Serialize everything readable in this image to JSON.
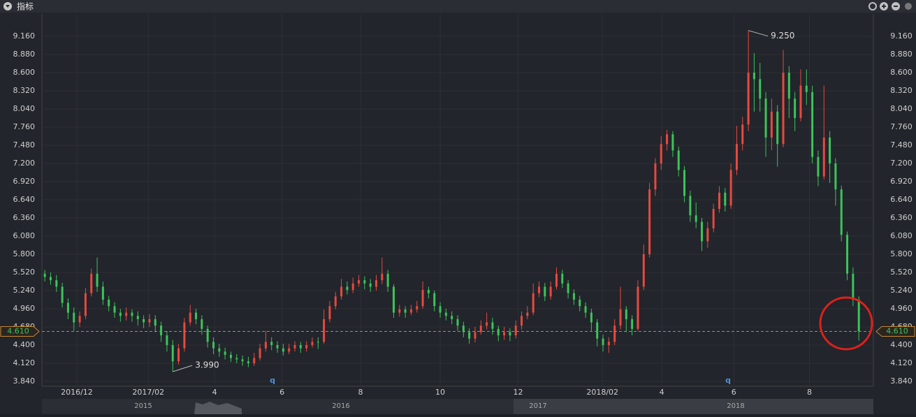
{
  "header": {
    "title": "指标"
  },
  "chart_data": {
    "type": "candlestick",
    "ylim": [
      3.765,
      9.505
    ],
    "yticks": [
      {
        "value": 3.84,
        "label": "3.840"
      },
      {
        "value": 4.12,
        "label": "4.120"
      },
      {
        "value": 4.4,
        "label": "4.400"
      },
      {
        "value": 4.68,
        "label": "4.680"
      },
      {
        "value": 4.96,
        "label": "4.960"
      },
      {
        "value": 5.24,
        "label": "5.240"
      },
      {
        "value": 5.52,
        "label": "5.520"
      },
      {
        "value": 5.8,
        "label": "5.800"
      },
      {
        "value": 6.08,
        "label": "6.080"
      },
      {
        "value": 6.36,
        "label": "6.360"
      },
      {
        "value": 6.64,
        "label": "6.640"
      },
      {
        "value": 6.92,
        "label": "6.920"
      },
      {
        "value": 7.2,
        "label": "7.200"
      },
      {
        "value": 7.48,
        "label": "7.480"
      },
      {
        "value": 7.76,
        "label": "7.760"
      },
      {
        "value": 8.04,
        "label": "8.040"
      },
      {
        "value": 8.32,
        "label": "8.320"
      },
      {
        "value": 8.6,
        "label": "8.600"
      },
      {
        "value": 8.88,
        "label": "8.880"
      },
      {
        "value": 9.16,
        "label": "9.160"
      }
    ],
    "xlim": [
      0,
      143
    ],
    "xticks": [
      {
        "value": 6.0,
        "label": "2016/12"
      },
      {
        "value": 18.3,
        "label": "2017/02"
      },
      {
        "value": 29.7,
        "label": "4"
      },
      {
        "value": 41.3,
        "label": "6"
      },
      {
        "value": 54.8,
        "label": "8"
      },
      {
        "value": 68.5,
        "label": "10"
      },
      {
        "value": 81.9,
        "label": "12"
      },
      {
        "value": 96.4,
        "label": "2018/02"
      },
      {
        "value": 106.6,
        "label": "4"
      },
      {
        "value": 119.0,
        "label": "6"
      },
      {
        "value": 132.0,
        "label": "8"
      }
    ],
    "grid": true,
    "up_color": "#e8493f",
    "down_color": "#3cc45a",
    "open": [
      5.5,
      5.45,
      5.4,
      5.3,
      5.05,
      4.9,
      4.75,
      4.85,
      5.2,
      5.5,
      5.3,
      5.1,
      5.0,
      4.9,
      4.85,
      4.9,
      4.85,
      4.8,
      4.75,
      4.8,
      4.7,
      4.55,
      4.4,
      4.15,
      4.35,
      4.75,
      4.9,
      4.8,
      4.65,
      4.45,
      4.35,
      4.3,
      4.25,
      4.2,
      4.18,
      4.15,
      4.12,
      4.2,
      4.35,
      4.45,
      4.4,
      4.35,
      4.3,
      4.35,
      4.4,
      4.35,
      4.4,
      4.45,
      4.45,
      4.8,
      5.0,
      5.15,
      5.3,
      5.25,
      5.35,
      5.4,
      5.35,
      5.3,
      5.4,
      5.5,
      5.3,
      4.9,
      4.95,
      4.9,
      4.95,
      5.0,
      5.25,
      5.2,
      5.0,
      4.9,
      4.85,
      4.8,
      4.7,
      4.6,
      4.5,
      4.6,
      4.7,
      4.75,
      4.65,
      4.55,
      4.6,
      4.55,
      4.7,
      4.85,
      4.9,
      5.2,
      5.3,
      5.15,
      5.3,
      5.5,
      5.35,
      5.2,
      5.1,
      5.0,
      4.9,
      4.75,
      4.5,
      4.4,
      4.45,
      4.7,
      4.95,
      4.8,
      4.65,
      5.3,
      5.8,
      6.8,
      7.2,
      7.5,
      7.65,
      7.4,
      7.1,
      6.7,
      6.4,
      6.3,
      6.0,
      6.2,
      6.5,
      6.75,
      6.55,
      7.1,
      7.5,
      7.8,
      8.6,
      8.5,
      8.2,
      7.6,
      8.0,
      7.5,
      8.6,
      8.2,
      7.9,
      8.4,
      8.3,
      7.3,
      7.0,
      7.6,
      7.2,
      6.8,
      6.1,
      5.5,
      5.1
    ],
    "high": [
      5.56,
      5.52,
      5.48,
      5.36,
      5.12,
      4.98,
      4.92,
      5.28,
      5.58,
      5.75,
      5.38,
      5.16,
      5.06,
      4.96,
      4.98,
      4.95,
      4.92,
      4.86,
      4.88,
      4.86,
      4.76,
      4.62,
      4.48,
      4.42,
      4.82,
      5.02,
      4.96,
      4.86,
      4.7,
      4.52,
      4.42,
      4.36,
      4.3,
      4.26,
      4.24,
      4.22,
      4.28,
      4.42,
      4.62,
      4.52,
      4.46,
      4.42,
      4.42,
      4.46,
      4.45,
      4.46,
      4.52,
      4.52,
      4.95,
      5.08,
      5.22,
      5.42,
      5.38,
      5.44,
      5.48,
      5.46,
      5.42,
      5.48,
      5.75,
      5.56,
      5.34,
      5.02,
      5.0,
      5.02,
      5.08,
      5.38,
      5.3,
      5.24,
      5.06,
      4.96,
      4.92,
      4.86,
      4.76,
      4.66,
      4.68,
      4.78,
      4.9,
      4.82,
      4.7,
      4.68,
      4.66,
      4.78,
      4.92,
      5.0,
      5.35,
      5.38,
      5.36,
      5.38,
      5.6,
      5.56,
      5.4,
      5.26,
      5.16,
      5.06,
      4.96,
      4.8,
      4.56,
      4.52,
      4.8,
      5.3,
      5.0,
      4.86,
      5.4,
      5.95,
      6.9,
      7.28,
      7.62,
      7.72,
      7.7,
      7.46,
      7.16,
      6.78,
      6.6,
      6.36,
      6.3,
      6.58,
      6.85,
      6.82,
      7.2,
      7.78,
      7.92,
      9.25,
      8.9,
      8.75,
      8.3,
      8.2,
      8.1,
      8.95,
      8.7,
      8.3,
      8.65,
      8.65,
      8.4,
      7.4,
      8.4,
      7.7,
      7.28,
      6.86,
      6.15,
      5.6,
      5.15
    ],
    "low": [
      5.38,
      5.33,
      5.22,
      4.98,
      4.8,
      4.62,
      4.68,
      4.8,
      5.15,
      5.22,
      5.02,
      4.92,
      4.82,
      4.76,
      4.78,
      4.76,
      4.7,
      4.66,
      4.68,
      4.6,
      4.45,
      4.3,
      3.99,
      4.1,
      4.3,
      4.7,
      4.72,
      4.56,
      4.36,
      4.26,
      4.22,
      4.18,
      4.14,
      4.12,
      4.08,
      4.06,
      4.08,
      4.16,
      4.3,
      4.32,
      4.28,
      4.24,
      4.26,
      4.3,
      4.28,
      4.3,
      4.36,
      4.34,
      4.42,
      4.75,
      4.95,
      5.1,
      5.18,
      5.2,
      5.3,
      5.26,
      5.22,
      5.24,
      5.34,
      5.22,
      4.82,
      4.84,
      4.82,
      4.86,
      4.9,
      4.96,
      5.12,
      4.92,
      4.82,
      4.78,
      4.72,
      4.62,
      4.52,
      4.42,
      4.44,
      4.56,
      4.64,
      4.56,
      4.46,
      4.48,
      4.46,
      4.5,
      4.64,
      4.8,
      4.86,
      5.14,
      5.08,
      5.1,
      5.26,
      5.28,
      5.12,
      5.02,
      4.92,
      4.82,
      4.62,
      4.38,
      4.3,
      4.28,
      4.4,
      4.64,
      4.6,
      4.55,
      4.62,
      5.25,
      5.75,
      6.7,
      7.1,
      7.4,
      7.3,
      7.0,
      6.6,
      6.3,
      6.2,
      5.85,
      5.9,
      6.14,
      6.44,
      6.46,
      6.5,
      7.02,
      7.4,
      7.7,
      8.0,
      8.0,
      7.3,
      7.4,
      7.15,
      7.45,
      7.9,
      7.7,
      7.85,
      8.1,
      7.2,
      6.85,
      6.95,
      6.9,
      6.55,
      6.0,
      5.4,
      5.0,
      4.47
    ],
    "close": [
      5.45,
      5.4,
      5.3,
      5.05,
      4.9,
      4.75,
      4.85,
      5.2,
      5.5,
      5.3,
      5.1,
      5.0,
      4.9,
      4.85,
      4.9,
      4.85,
      4.8,
      4.75,
      4.8,
      4.7,
      4.55,
      4.4,
      4.15,
      4.35,
      4.75,
      4.9,
      4.8,
      4.65,
      4.45,
      4.35,
      4.3,
      4.25,
      4.2,
      4.18,
      4.15,
      4.12,
      4.2,
      4.35,
      4.45,
      4.4,
      4.35,
      4.3,
      4.35,
      4.4,
      4.35,
      4.4,
      4.45,
      4.45,
      4.8,
      5.0,
      5.15,
      5.3,
      5.25,
      5.35,
      5.4,
      5.35,
      5.3,
      5.4,
      5.5,
      5.3,
      4.9,
      4.95,
      4.9,
      4.95,
      5.0,
      5.25,
      5.2,
      5.0,
      4.9,
      4.85,
      4.8,
      4.7,
      4.6,
      4.5,
      4.6,
      4.7,
      4.75,
      4.65,
      4.55,
      4.6,
      4.55,
      4.7,
      4.85,
      4.9,
      5.2,
      5.3,
      5.15,
      5.3,
      5.5,
      5.35,
      5.2,
      5.1,
      5.0,
      4.9,
      4.75,
      4.5,
      4.4,
      4.45,
      4.7,
      4.95,
      4.8,
      4.65,
      5.3,
      5.8,
      6.8,
      7.2,
      7.5,
      7.65,
      7.4,
      7.1,
      6.7,
      6.4,
      6.3,
      6.0,
      6.2,
      6.5,
      6.75,
      6.55,
      7.1,
      7.5,
      7.8,
      8.6,
      8.5,
      8.2,
      7.6,
      8.0,
      7.5,
      8.6,
      8.2,
      7.9,
      8.4,
      8.3,
      7.3,
      7.0,
      7.6,
      7.2,
      6.8,
      6.1,
      5.5,
      5.1,
      4.61
    ],
    "last_price": {
      "value": 4.61,
      "label": "4.610"
    },
    "max_label": {
      "value": 9.25,
      "label": "9.250"
    },
    "min_label": {
      "value": 3.99,
      "label": "3.990"
    },
    "markers": [
      "q",
      "q"
    ]
  },
  "navigator": {
    "labels": [
      "2015",
      "2016",
      "2017",
      "2018"
    ]
  }
}
